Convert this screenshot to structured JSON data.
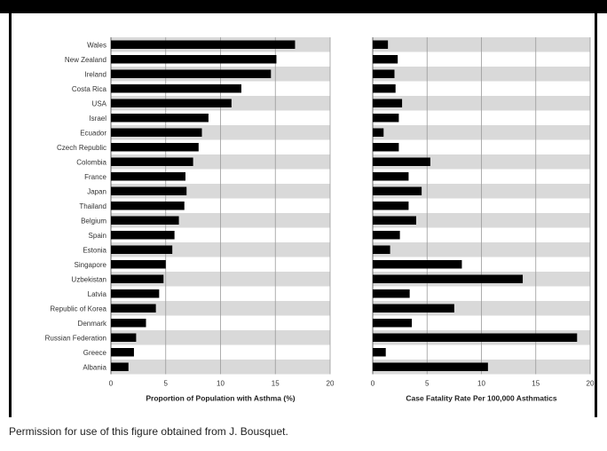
{
  "footnote": "Permission for use of this figure obtained from J. Bousquet.",
  "colors": {
    "bar": "#000000",
    "stripe": "#d9d9d9",
    "grid": "#9a9a9a"
  },
  "chart_data": [
    {
      "type": "bar",
      "orientation": "horizontal",
      "title": "",
      "xlabel": "Proportion of Population with Asthma (%)",
      "ylabel": "",
      "xlim": [
        0,
        20
      ],
      "xticks": [
        0,
        5,
        10,
        15,
        20
      ],
      "grid": true,
      "categories": [
        "Wales",
        "New Zealand",
        "Ireland",
        "Costa Rica",
        "USA",
        "Israel",
        "Ecuador",
        "Czech Republic",
        "Colombia",
        "France",
        "Japan",
        "Thailand",
        "Belgium",
        "Spain",
        "Estonia",
        "Singapore",
        "Uzbekistan",
        "Latvia",
        "Republic of Korea",
        "Denmark",
        "Russian Federation",
        "Greece",
        "Albania"
      ],
      "values": [
        16.8,
        15.1,
        14.6,
        11.9,
        11.0,
        8.9,
        8.3,
        8.0,
        7.5,
        6.8,
        6.9,
        6.7,
        6.2,
        5.8,
        5.6,
        5.0,
        4.8,
        4.4,
        4.1,
        3.2,
        2.3,
        2.1,
        1.6
      ]
    },
    {
      "type": "bar",
      "orientation": "horizontal",
      "title": "",
      "xlabel": "Case Fatality Rate Per 100,000 Asthmatics",
      "ylabel": "",
      "xlim": [
        0,
        20
      ],
      "xticks": [
        0,
        5,
        10,
        15,
        20
      ],
      "grid": true,
      "categories": [
        "Wales",
        "New Zealand",
        "Ireland",
        "Costa Rica",
        "USA",
        "Israel",
        "Ecuador",
        "Czech Republic",
        "Colombia",
        "France",
        "Japan",
        "Thailand",
        "Belgium",
        "Spain",
        "Estonia",
        "Singapore",
        "Uzbekistan",
        "Latvia",
        "Republic of Korea",
        "Denmark",
        "Russian Federation",
        "Greece",
        "Albania"
      ],
      "values": [
        1.4,
        2.3,
        2.0,
        2.1,
        2.7,
        2.4,
        1.0,
        2.4,
        5.3,
        3.3,
        4.5,
        3.3,
        4.0,
        2.5,
        1.6,
        8.2,
        13.8,
        3.4,
        7.5,
        3.6,
        18.8,
        1.2,
        10.6
      ]
    }
  ]
}
